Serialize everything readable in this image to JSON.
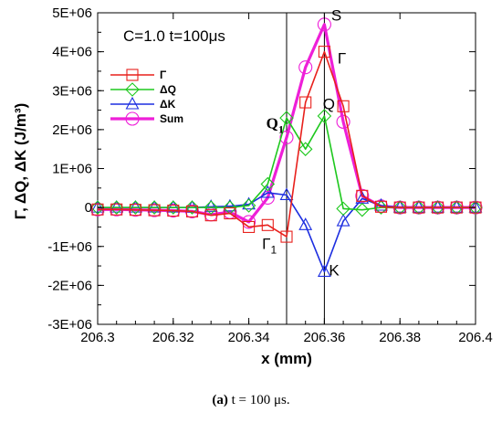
{
  "chart_data": {
    "type": "line",
    "condition_label": "C=1.0 t=100μs",
    "xlabel": "x (mm)",
    "ylabel": "Γ, ΔQ, ΔK (J/m³)",
    "xlim": [
      206.3,
      206.4
    ],
    "ylim": [
      -3000000,
      5000000
    ],
    "x_ticks": [
      206.3,
      206.32,
      206.34,
      206.36,
      206.38,
      206.4
    ],
    "x_tick_labels": [
      "206.3",
      "206.32",
      "206.34",
      "206.36",
      "206.38",
      "206.4"
    ],
    "y_ticks": [
      -3000000,
      -2000000,
      -1000000,
      0,
      1000000,
      2000000,
      3000000,
      4000000,
      5000000
    ],
    "y_tick_labels": [
      "-3E+06",
      "-2E+06",
      "-1E+06",
      "0",
      "1E+06",
      "2E+06",
      "3E+06",
      "4E+06",
      "5E+06"
    ],
    "grid": false,
    "legend_position": "upper-left",
    "vertical_lines": [
      206.35,
      206.36
    ],
    "series": [
      {
        "name": "Γ",
        "color": "#e8201c",
        "marker": "square",
        "line_width": 1.6,
        "x": [
          206.3,
          206.305,
          206.31,
          206.315,
          206.32,
          206.325,
          206.33,
          206.335,
          206.34,
          206.345,
          206.35,
          206.355,
          206.36,
          206.365,
          206.37,
          206.375,
          206.38,
          206.385,
          206.39,
          206.395,
          206.4
        ],
        "y": [
          -50000,
          -50000,
          -60000,
          -70000,
          -80000,
          -100000,
          -200000,
          -150000,
          -500000,
          -450000,
          -750000,
          2700000,
          4000000,
          2600000,
          300000,
          20000,
          0,
          0,
          0,
          0,
          0
        ]
      },
      {
        "name": "ΔQ",
        "color": "#1ec81e",
        "marker": "diamond",
        "line_width": 1.6,
        "x": [
          206.3,
          206.305,
          206.31,
          206.315,
          206.32,
          206.325,
          206.33,
          206.335,
          206.34,
          206.345,
          206.35,
          206.355,
          206.36,
          206.365,
          206.37,
          206.375,
          206.38,
          206.385,
          206.39,
          206.395,
          206.4
        ],
        "y": [
          0,
          0,
          0,
          0,
          0,
          0,
          0,
          0,
          50000,
          600000,
          2300000,
          1500000,
          2350000,
          -30000,
          -60000,
          0,
          0,
          0,
          0,
          0,
          0
        ]
      },
      {
        "name": "ΔK",
        "color": "#1d2ee0",
        "marker": "triangle",
        "line_width": 1.6,
        "x": [
          206.3,
          206.305,
          206.31,
          206.315,
          206.32,
          206.325,
          206.33,
          206.335,
          206.34,
          206.345,
          206.35,
          206.355,
          206.36,
          206.365,
          206.37,
          206.375,
          206.38,
          206.385,
          206.39,
          206.395,
          206.4
        ],
        "y": [
          0,
          0,
          0,
          0,
          0,
          0,
          20000,
          30000,
          80000,
          380000,
          320000,
          -450000,
          -1650000,
          -350000,
          230000,
          50000,
          0,
          0,
          0,
          0,
          0
        ]
      },
      {
        "name": "Sum",
        "color": "#ee1fd8",
        "marker": "circle",
        "line_width": 3.2,
        "x": [
          206.3,
          206.305,
          206.31,
          206.315,
          206.32,
          206.325,
          206.33,
          206.335,
          206.34,
          206.345,
          206.35,
          206.355,
          206.36,
          206.365,
          206.37,
          206.375,
          206.38,
          206.385,
          206.39,
          206.395,
          206.4
        ],
        "y": [
          -50000,
          -50000,
          -60000,
          -70000,
          -80000,
          -100000,
          -180000,
          -120000,
          -370000,
          250000,
          1800000,
          3600000,
          4700000,
          2200000,
          300000,
          30000,
          0,
          0,
          0,
          0,
          0
        ]
      }
    ],
    "annotations": [
      {
        "text": "S",
        "x": 206.3618,
        "y": 4800000,
        "style": "plain"
      },
      {
        "text": "Γ",
        "x": 206.3635,
        "y": 3700000,
        "style": "plain"
      },
      {
        "text": "Q",
        "x": 206.3596,
        "y": 2530000,
        "style": "plain"
      },
      {
        "text": "K",
        "x": 206.3612,
        "y": -1750000,
        "style": "plain"
      },
      {
        "text": "Q",
        "sub": "1",
        "x": 206.3446,
        "y": 2030000,
        "style": "bold"
      },
      {
        "text": "Γ",
        "sub": "1",
        "x": 206.3435,
        "y": -1070000,
        "style": "plain"
      }
    ]
  },
  "caption": {
    "label": "(a)",
    "text": " t = 100 μs."
  }
}
